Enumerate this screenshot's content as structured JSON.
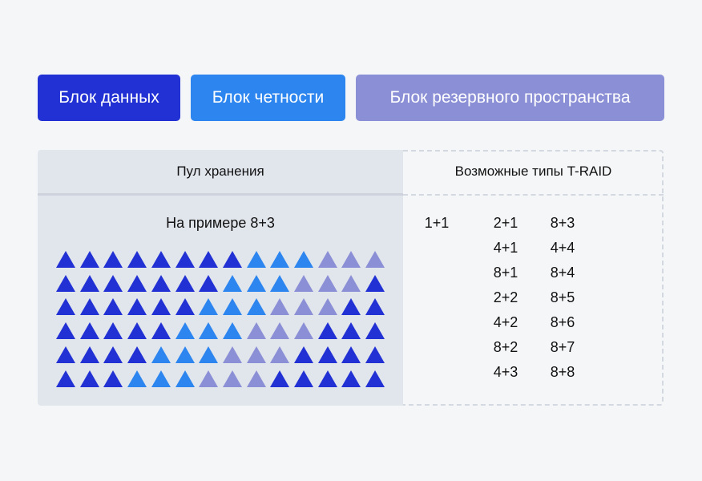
{
  "legend": {
    "data_block": {
      "label": "Блок данных",
      "color": "#2231d4"
    },
    "parity_block": {
      "label": "Блок четности",
      "color": "#2d86ef"
    },
    "spare_block": {
      "label": "Блок резервного пространства",
      "color": "#8b8fd6"
    }
  },
  "pool": {
    "header": "Пул хранения",
    "example_label": "На примере 8+3",
    "grid": [
      "DDDDDDDDPPPSSS",
      "DDDDDDDPPPSSSD",
      "DDDDDDPPPSSSDD",
      "DDDDDPPPSSSDDD",
      "DDDDPPPSSSDDDD",
      "DDDPPPSSSDDDDD"
    ]
  },
  "raid_types": {
    "header": "Возможные типы T-RAID",
    "col1": [
      "1+1"
    ],
    "col2": [
      "2+1",
      "4+1",
      "8+1",
      "2+2",
      "4+2",
      "8+2",
      "4+3"
    ],
    "col3": [
      "8+3",
      "4+4",
      "8+4",
      "8+5",
      "8+6",
      "8+7",
      "8+8"
    ]
  }
}
